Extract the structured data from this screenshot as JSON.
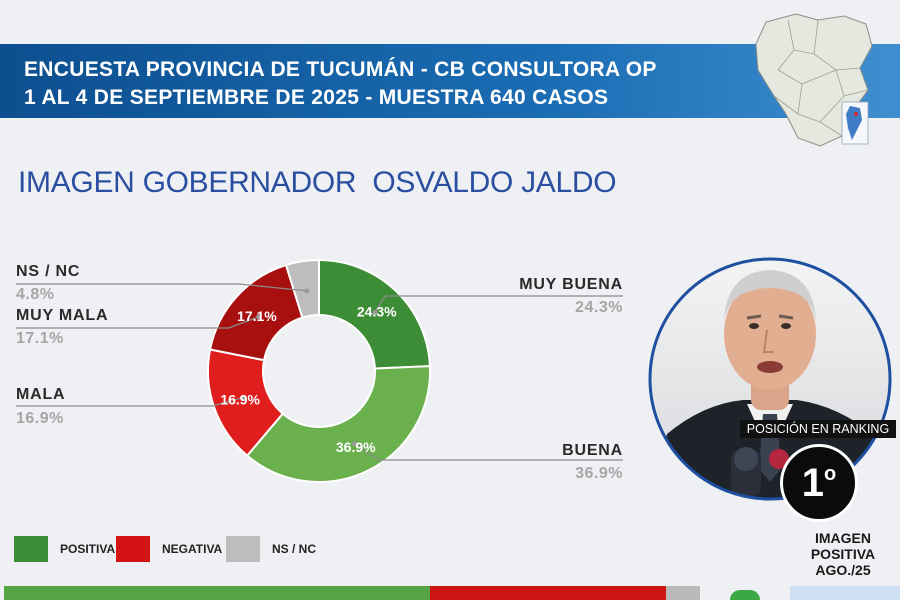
{
  "header": {
    "line1": "ENCUESTA PROVINCIA DE TUCUMÁN - CB CONSULTORA OP",
    "line2": "1 AL 4 DE SEPTIEMBRE DE 2025 - MUESTRA 640 CASOS"
  },
  "title": "IMAGEN GOBERNADOR  OSVALDO JALDO",
  "chart_data": {
    "type": "pie",
    "title": "IMAGEN GOBERNADOR  OSVALDO JALDO",
    "categories": [
      "MUY BUENA",
      "BUENA",
      "MALA",
      "MUY MALA",
      "NS / NC"
    ],
    "values": [
      24.3,
      36.9,
      16.9,
      17.1,
      4.8
    ],
    "value_labels": [
      "24.3%",
      "36.9%",
      "16.9%",
      "17.1%",
      "4.8%"
    ],
    "colors": [
      "#3c8d35",
      "#6ab04c",
      "#e01e1e",
      "#a80f0f",
      "#bdbdbd"
    ],
    "legend": [
      {
        "label": "POSITIVA",
        "color": "#3c8d35"
      },
      {
        "label": "NEGATIVA",
        "color": "#d41414"
      },
      {
        "label": "NS / NC",
        "color": "#bdbdbd"
      }
    ]
  },
  "ranking": {
    "label": "POSICIÓN EN RANKING",
    "position": "1",
    "ordinal": "o",
    "caption_line1": "IMAGEN",
    "caption_line2": "POSITIVA",
    "caption_line3": "AGO./25"
  }
}
